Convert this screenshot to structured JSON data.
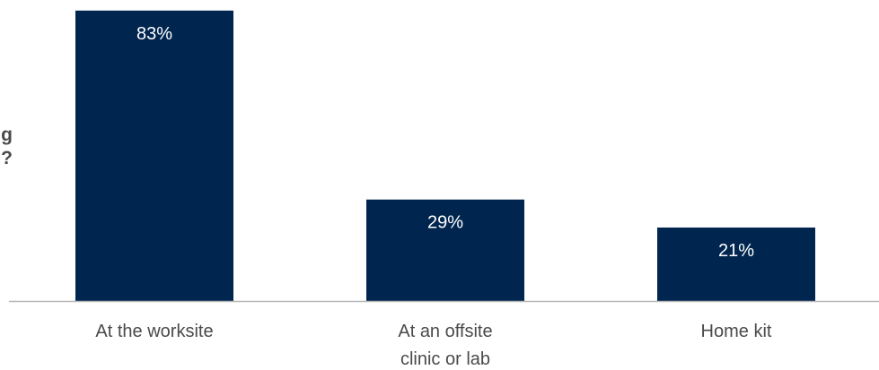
{
  "chart_data": {
    "type": "bar",
    "title": "",
    "xlabel": "",
    "ylabel": "",
    "categories": [
      "At the worksite",
      "At an offsite clinic or lab",
      "Home kit"
    ],
    "category_lines": [
      [
        "At the worksite"
      ],
      [
        "At an offsite",
        "clinic or lab"
      ],
      [
        "Home kit"
      ]
    ],
    "values": [
      83,
      29,
      21
    ],
    "value_labels": [
      "83%",
      "29%",
      "21%"
    ],
    "ylim": [
      0,
      85
    ],
    "grid": false,
    "bar_color": "#00264f",
    "axis_color": "#b7b7b7"
  },
  "side_question": {
    "line1": "g",
    "line2": "?"
  }
}
